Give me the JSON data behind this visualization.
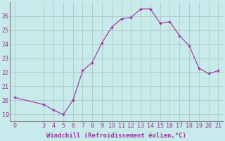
{
  "x": [
    0,
    3,
    4,
    5,
    6,
    7,
    8,
    9,
    10,
    11,
    12,
    13,
    14,
    15,
    16,
    17,
    18,
    19,
    20,
    21
  ],
  "y": [
    20.2,
    19.7,
    19.3,
    19.0,
    20.0,
    22.1,
    22.7,
    24.1,
    25.2,
    25.8,
    25.9,
    26.5,
    26.5,
    25.5,
    25.6,
    24.6,
    23.9,
    22.3,
    21.9,
    22.1
  ],
  "line_color": "#993399",
  "marker_color": "#993399",
  "bg_color": "#c8eaea",
  "grid_color": "#b0c8c8",
  "xlabel": "Windchill (Refroidissement éolien,°C)",
  "xlabel_color": "#993399",
  "yticks": [
    19,
    20,
    21,
    22,
    23,
    24,
    25,
    26
  ],
  "xticks": [
    0,
    3,
    4,
    5,
    6,
    7,
    8,
    9,
    10,
    11,
    12,
    13,
    14,
    15,
    16,
    17,
    18,
    19,
    20,
    21
  ],
  "ylim": [
    18.5,
    27.0
  ],
  "xlim": [
    -0.5,
    21.5
  ],
  "tick_fontsize": 6,
  "xlabel_fontsize": 6.5
}
